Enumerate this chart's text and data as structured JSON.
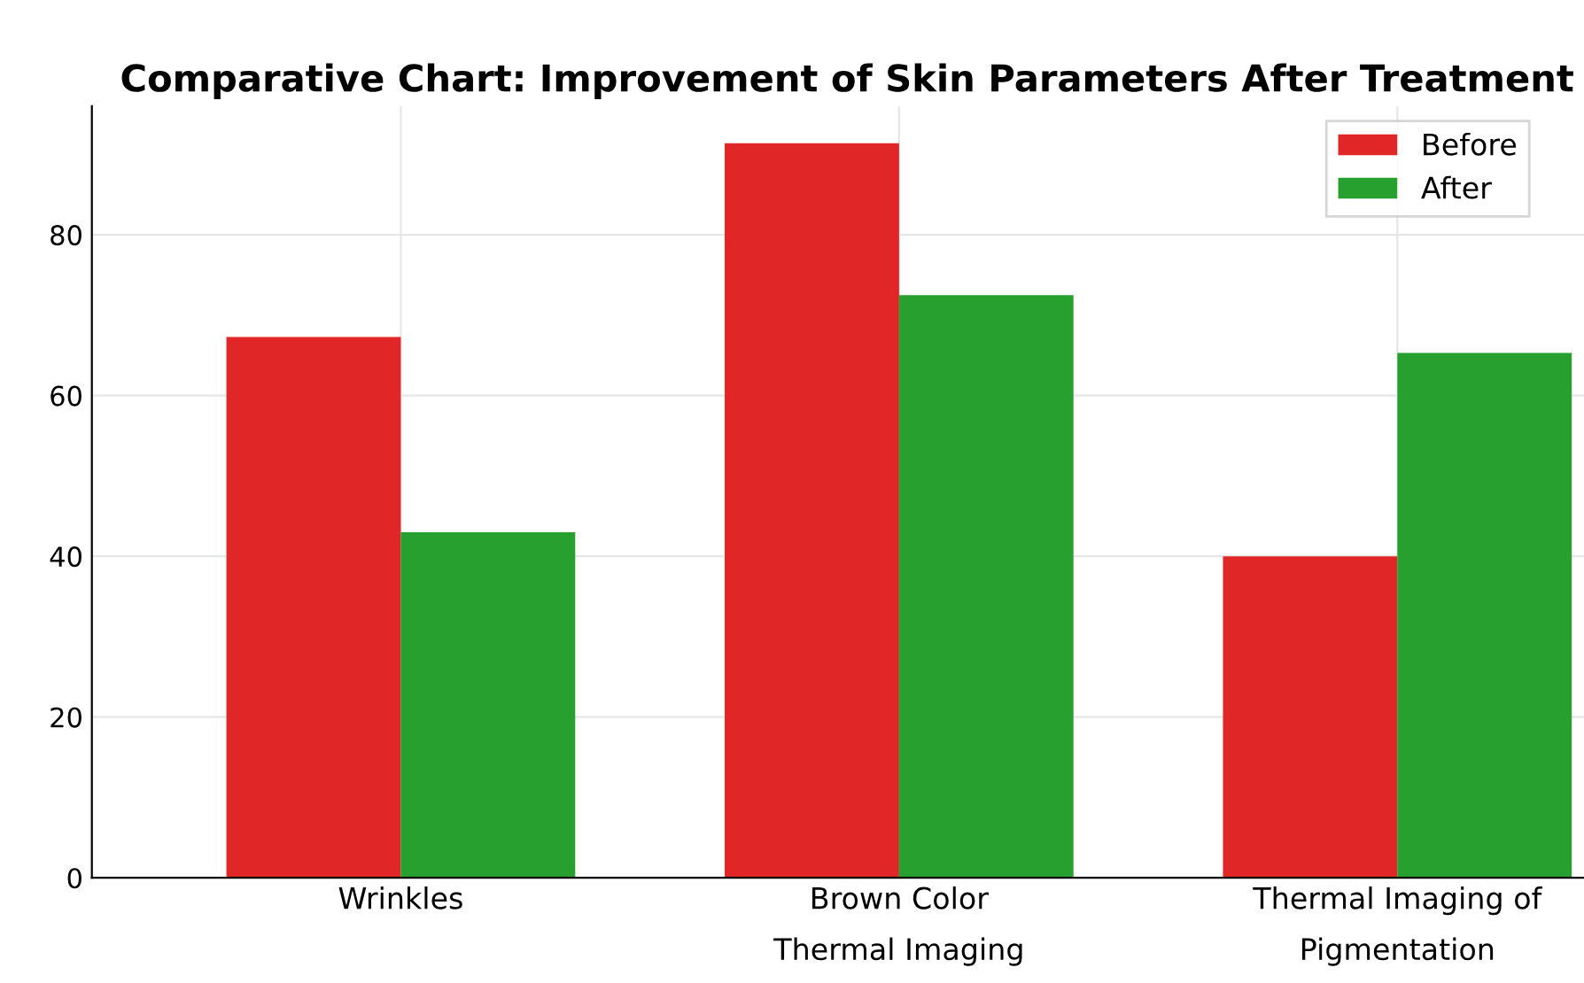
{
  "chart_data": {
    "type": "bar",
    "title": "Comparative Chart: Improvement of Skin Parameters After Treatment",
    "categories": [
      "Wrinkles",
      "Brown Color\nThermal Imaging",
      "Thermal Imaging of\nPigmentation"
    ],
    "series": [
      {
        "name": "Before",
        "color": "#e02626",
        "values": [
          67.3,
          91.4,
          40
        ]
      },
      {
        "name": "After",
        "color": "#28a030",
        "values": [
          43,
          72.5,
          65.3
        ]
      }
    ],
    "ylim": [
      0,
      96
    ],
    "yticks": [
      0,
      20,
      40,
      60,
      80
    ],
    "grid": true,
    "legend": "top right"
  }
}
